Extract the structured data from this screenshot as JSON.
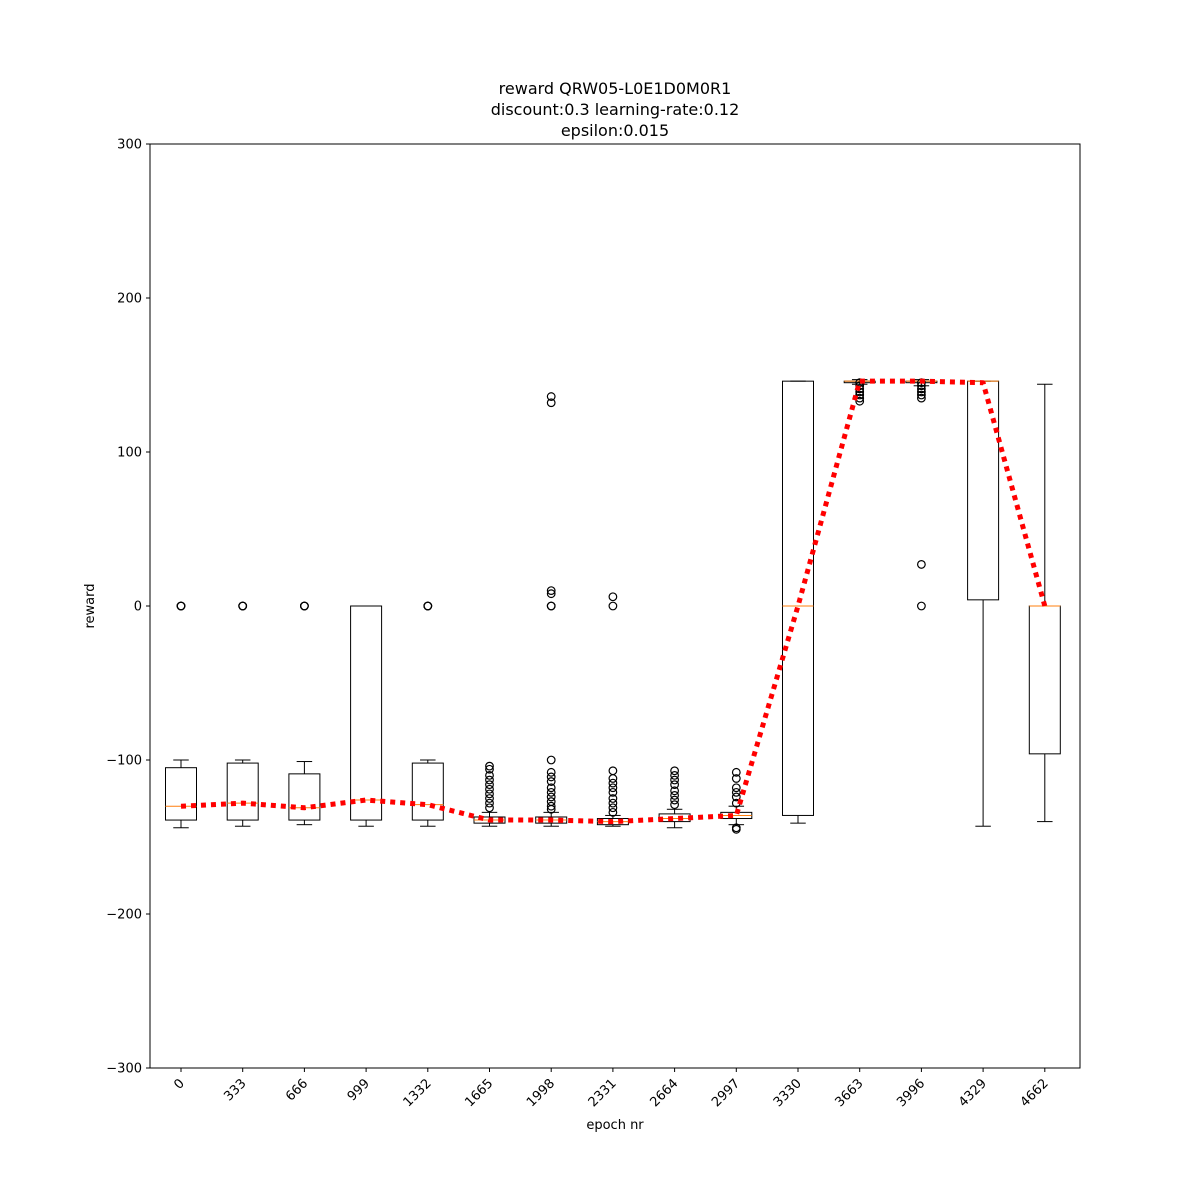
{
  "chart_data": {
    "type": "box",
    "title": [
      "reward QRW05-L0E1D0M0R1",
      "discount:0.3 learning-rate:0.12",
      "epsilon:0.015"
    ],
    "xlabel": "epoch nr",
    "ylabel": "reward",
    "ylim": [
      -300,
      300
    ],
    "yticks": [
      -300,
      -200,
      -100,
      0,
      100,
      200,
      300
    ],
    "grid": false,
    "categories": [
      "0",
      "333",
      "666",
      "999",
      "1332",
      "1665",
      "1998",
      "2331",
      "2664",
      "2997",
      "3330",
      "3663",
      "3996",
      "4329",
      "4662"
    ],
    "boxes": [
      {
        "whislo": -144,
        "q1": -139,
        "med": -130,
        "q3": -105,
        "whishi": -100,
        "fliers": [
          0,
          0,
          0
        ]
      },
      {
        "whislo": -143,
        "q1": -139,
        "med": -128,
        "q3": -102,
        "whishi": -100,
        "fliers": [
          0,
          0,
          0
        ]
      },
      {
        "whislo": -142,
        "q1": -139,
        "med": -131,
        "q3": -109,
        "whishi": -101,
        "fliers": [
          0,
          0,
          0
        ]
      },
      {
        "whislo": -143,
        "q1": -139,
        "med": -126,
        "q3": 0,
        "whishi": 0,
        "fliers": []
      },
      {
        "whislo": -143,
        "q1": -139,
        "med": -129,
        "q3": -102,
        "whishi": -100,
        "fliers": [
          0,
          0,
          0
        ]
      },
      {
        "whislo": -143,
        "q1": -141,
        "med": -139,
        "q3": -137,
        "whishi": -134,
        "fliers": [
          -104,
          -106,
          -110,
          -113,
          -116,
          -119,
          -122,
          -125,
          -128,
          -131
        ]
      },
      {
        "whislo": -143,
        "q1": -141,
        "med": -139,
        "q3": -137,
        "whishi": -134,
        "fliers": [
          136,
          132,
          10,
          8,
          0,
          0,
          -100,
          -108,
          -111,
          -114,
          -118,
          -121,
          -124,
          -127,
          -130,
          -132
        ]
      },
      {
        "whislo": -143,
        "q1": -142,
        "med": -140,
        "q3": -138,
        "whishi": -136,
        "fliers": [
          6,
          0,
          -107,
          -112,
          -115,
          -118,
          -121,
          -125,
          -128,
          -131,
          -134
        ]
      },
      {
        "whislo": -144,
        "q1": -140,
        "med": -138,
        "q3": -135,
        "whishi": -132,
        "fliers": [
          -107,
          -110,
          -113,
          -116,
          -120,
          -123,
          -126,
          -129
        ]
      },
      {
        "whislo": -142,
        "q1": -138,
        "med": -136,
        "q3": -134,
        "whishi": -130,
        "fliers": [
          -108,
          -112,
          -118,
          -121,
          -124,
          -128,
          -144,
          -145
        ]
      },
      {
        "whislo": -141,
        "q1": -136,
        "med": 0,
        "q3": 146,
        "whishi": 146,
        "fliers": []
      },
      {
        "whislo": 144,
        "q1": 145,
        "med": 146,
        "q3": 146,
        "whishi": 147,
        "fliers": [
          145,
          143,
          141,
          139,
          137,
          135,
          133
        ]
      },
      {
        "whislo": 143,
        "q1": 145,
        "med": 146,
        "q3": 146,
        "whishi": 147,
        "fliers": [
          145,
          143,
          141,
          139,
          137,
          135,
          27,
          0
        ]
      },
      {
        "whislo": -143,
        "q1": 4,
        "med": 146,
        "q3": 146,
        "whishi": 146,
        "fliers": []
      },
      {
        "whislo": -140,
        "q1": -96,
        "med": 0,
        "q3": 0,
        "whishi": 144,
        "fliers": []
      }
    ],
    "mean_line": {
      "name": "mean",
      "values": [
        -130,
        -128,
        -131,
        -126,
        -129,
        -139,
        -139,
        -140,
        -138,
        -136,
        0,
        146,
        146,
        145,
        0
      ],
      "color": "#ff0000",
      "style": "dotted"
    },
    "colors": {
      "box": "#000000",
      "median": "#ff7f0e",
      "mean_line": "#ff0000"
    }
  }
}
